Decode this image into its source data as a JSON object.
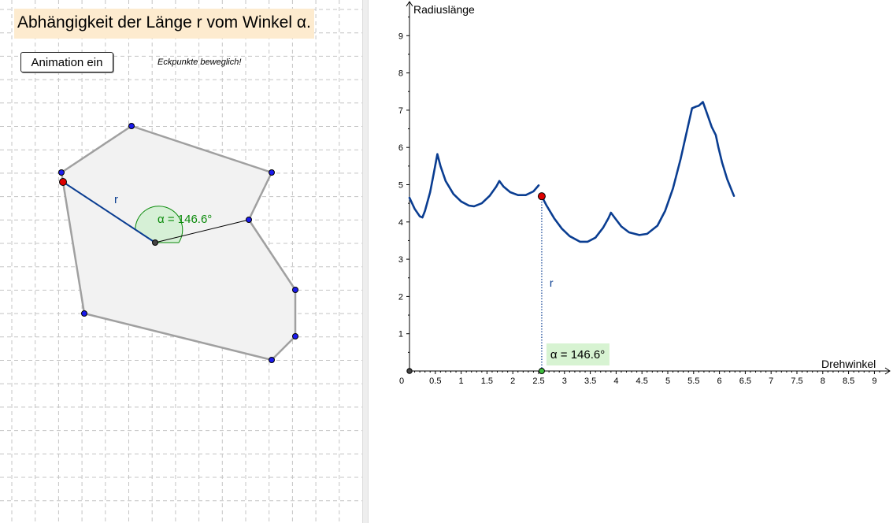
{
  "title": "Abhängigkeit der Länge r vom Winkel α.",
  "animation_button": "Animation ein",
  "hint": "Eckpunkte beweglich!",
  "polygon": {
    "radius_label": "r",
    "angle_label": "α = 146.6°"
  },
  "colors": {
    "curve": "#0a3d91",
    "vertex": "#1a1aee",
    "active_point": "#dd0000",
    "angle": "#0a8a0a",
    "angle_fill": "#d6f0d6",
    "polygon_fill": "#f2f2f2",
    "polygon_edge": "#a0a0a0",
    "title_bg": "#fdebcf",
    "label_bg": "#d7f3d2"
  },
  "chart_data": {
    "type": "line",
    "xlabel": "Drehwinkel",
    "ylabel": "Radiuslänge",
    "xlim": [
      0,
      9.2
    ],
    "ylim": [
      0,
      9.5
    ],
    "x_ticks": [
      "0.5",
      "1",
      "1.5",
      "2",
      "2.5",
      "3",
      "3.5",
      "4",
      "4.5",
      "5",
      "5.5",
      "6",
      "6.5",
      "7",
      "7.5",
      "8",
      "8.5",
      "9"
    ],
    "y_ticks": [
      "1",
      "2",
      "3",
      "4",
      "5",
      "6",
      "7",
      "8",
      "9"
    ],
    "origin_label": "0",
    "grid": false,
    "current_point": {
      "x": 2.56,
      "y": 4.69,
      "label": "r"
    },
    "angle_label": "α = 146.6°",
    "series": [
      {
        "values": [
          [
            0.0,
            4.65
          ],
          [
            0.1,
            4.35
          ],
          [
            0.2,
            4.15
          ],
          [
            0.25,
            4.12
          ],
          [
            0.3,
            4.3
          ],
          [
            0.4,
            4.8
          ],
          [
            0.47,
            5.3
          ],
          [
            0.54,
            5.82
          ],
          [
            0.6,
            5.5
          ],
          [
            0.7,
            5.1
          ],
          [
            0.85,
            4.75
          ],
          [
            1.0,
            4.55
          ],
          [
            1.15,
            4.44
          ],
          [
            1.25,
            4.42
          ],
          [
            1.4,
            4.5
          ],
          [
            1.55,
            4.7
          ],
          [
            1.68,
            4.95
          ],
          [
            1.74,
            5.1
          ],
          [
            1.82,
            4.95
          ],
          [
            1.95,
            4.8
          ],
          [
            2.1,
            4.72
          ],
          [
            2.25,
            4.72
          ],
          [
            2.4,
            4.82
          ],
          [
            2.5,
            4.98
          ]
        ]
      },
      {
        "values": [
          [
            2.56,
            4.69
          ],
          [
            2.65,
            4.45
          ],
          [
            2.8,
            4.1
          ],
          [
            2.95,
            3.82
          ],
          [
            3.1,
            3.62
          ],
          [
            3.3,
            3.47
          ],
          [
            3.45,
            3.47
          ],
          [
            3.6,
            3.58
          ],
          [
            3.75,
            3.85
          ],
          [
            3.85,
            4.1
          ],
          [
            3.9,
            4.25
          ],
          [
            3.98,
            4.1
          ],
          [
            4.1,
            3.88
          ],
          [
            4.25,
            3.72
          ],
          [
            4.45,
            3.65
          ],
          [
            4.6,
            3.68
          ],
          [
            4.8,
            3.9
          ],
          [
            4.95,
            4.3
          ],
          [
            5.1,
            4.9
          ],
          [
            5.25,
            5.7
          ],
          [
            5.38,
            6.5
          ],
          [
            5.47,
            7.05
          ],
          [
            5.55,
            7.1
          ],
          [
            5.6,
            7.12
          ],
          [
            5.68,
            7.22
          ],
          [
            5.75,
            6.95
          ],
          [
            5.85,
            6.55
          ],
          [
            5.93,
            6.33
          ],
          [
            5.98,
            6.0
          ],
          [
            6.05,
            5.6
          ],
          [
            6.15,
            5.15
          ],
          [
            6.28,
            4.7
          ]
        ]
      }
    ]
  }
}
